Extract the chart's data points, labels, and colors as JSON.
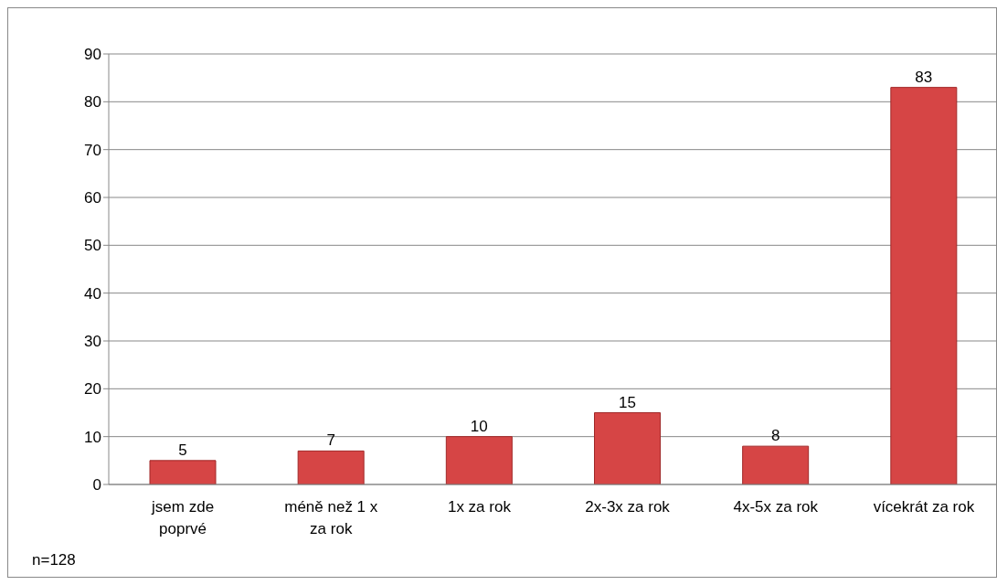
{
  "chart_data": {
    "type": "bar",
    "categories": [
      "jsem zde poprvé",
      "méně než 1 x za rok",
      "1x za rok",
      "2x-3x za rok",
      "4x-5x za rok",
      "vícekrát za rok"
    ],
    "values": [
      5,
      7,
      10,
      15,
      8,
      83
    ],
    "color": "#d64545",
    "ylim": [
      0,
      90
    ],
    "yticks": [
      0,
      10,
      20,
      30,
      40,
      50,
      60,
      70,
      80,
      90
    ],
    "grid": "y",
    "data_labels": true,
    "annotations": [
      "n=128"
    ]
  }
}
